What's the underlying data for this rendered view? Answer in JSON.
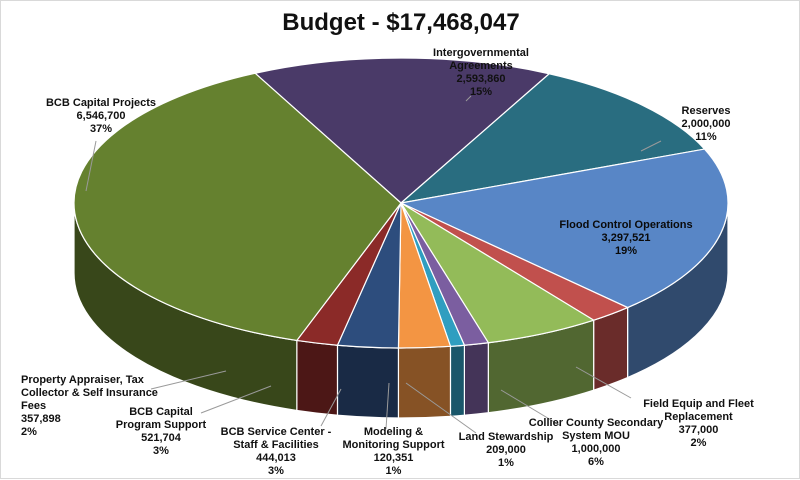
{
  "chart_data": {
    "type": "pie",
    "title": "Budget - $17,468,047",
    "slices": [
      {
        "label": "Intergovernmental\nAgreements",
        "value": "2,593,860",
        "percent": "15%",
        "amount": 2593860,
        "color": "#4a3a68"
      },
      {
        "label": "Reserves",
        "value": "2,000,000",
        "percent": "11%",
        "amount": 2000000,
        "color": "#296d80"
      },
      {
        "label": "Flood Control Operations",
        "value": "3,297,521",
        "percent": "19%",
        "amount": 3297521,
        "color": "#5886c6"
      },
      {
        "label": "Field Equip and Fleet\nReplacement",
        "value": "377,000",
        "percent": "2%",
        "amount": 377000,
        "color": "#c1504d"
      },
      {
        "label": "Collier County Secondary\nSystem MOU",
        "value": "1,000,000",
        "percent": "6%",
        "amount": 1000000,
        "color": "#93bb59"
      },
      {
        "label": "Land Stewardship",
        "value": "209,000",
        "percent": "1%",
        "amount": 209000,
        "color": "#7b5ea0"
      },
      {
        "label": "Modeling &\nMonitoring Support",
        "value": "120,351",
        "percent": "1%",
        "amount": 120351,
        "color": "#2f9ec0"
      },
      {
        "label": "BCB Service Center -\nStaff & Facilities",
        "value": "444,013",
        "percent": "3%",
        "amount": 444013,
        "color": "#f39543"
      },
      {
        "label": "BCB Capital\nProgram Support",
        "value": "521,704",
        "percent": "3%",
        "amount": 521704,
        "color": "#2d4d7d"
      },
      {
        "label": "Property Appraiser, Tax\nCollector & Self Insurance\nFees",
        "value": "357,898",
        "percent": "2%",
        "amount": 357898,
        "color": "#8b2a28"
      },
      {
        "label": "BCB Capital Projects",
        "value": "6,546,700",
        "percent": "37%",
        "amount": 6546700,
        "color": "#65812f"
      }
    ]
  }
}
